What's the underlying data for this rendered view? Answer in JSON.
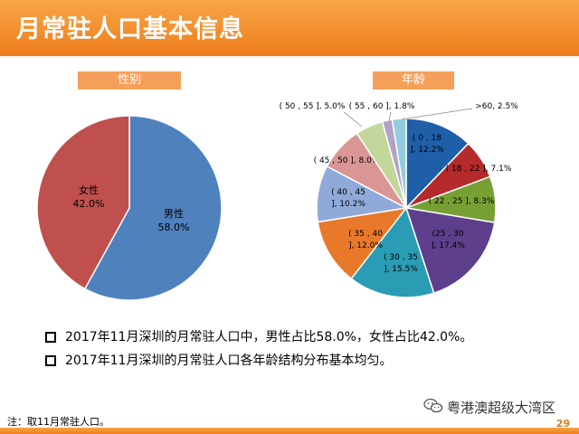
{
  "header": {
    "title": "月常驻人口基本信息"
  },
  "gender": {
    "label": "性别",
    "chart_data": {
      "type": "pie",
      "slices": [
        {
          "name": "男性",
          "value": 58.0,
          "label": "58.0%",
          "color": "#4f81bd"
        },
        {
          "name": "女性",
          "value": 42.0,
          "label": "42.0%",
          "color": "#c0504d"
        }
      ]
    }
  },
  "age": {
    "label": "年龄",
    "chart_data": {
      "type": "pie",
      "slices": [
        {
          "name": "( 0 , 18 ], 12.2%",
          "value": 12.2,
          "color": "#1f5fa8"
        },
        {
          "name": "( 18 , 22 ], 7.1%",
          "value": 7.1,
          "color": "#b52a2a"
        },
        {
          "name": "( 22 , 25 ], 8.3%",
          "value": 8.3,
          "color": "#77a034"
        },
        {
          "name": "( 25 , 30 ], 17.4%",
          "value": 17.4,
          "color": "#5d3f8c"
        },
        {
          "name": "( 30 , 35 ], 15.5%",
          "value": 15.5,
          "color": "#2a9cb4"
        },
        {
          "name": "( 35 , 40 ], 12.0%",
          "value": 12.0,
          "color": "#e8792b"
        },
        {
          "name": "( 40 , 45 ], 10.2%",
          "value": 10.2,
          "color": "#8fa9d8"
        },
        {
          "name": "( 45 , 50 ], 8.0%",
          "value": 8.0,
          "color": "#d99694"
        },
        {
          "name": "( 50 , 55 ], 5.0%",
          "value": 5.0,
          "color": "#c3d69b"
        },
        {
          "name": "( 55 , 60 ], 1.8%",
          "value": 1.8,
          "color": "#b3a2c7"
        },
        {
          "name": ">60, 2.5%",
          "value": 2.5,
          "color": "#93cddd"
        }
      ]
    }
  },
  "bullets": [
    "2017年11月深圳的月常驻人口中，男性占比58.0%，女性占比42.0%。",
    "2017年11月深圳的月常驻人口各年龄结构分布基本均匀。"
  ],
  "watermark": {
    "text": "粤港澳超级大湾区",
    "icon": "wechat-icon"
  },
  "footnote": "注：取11月常驻人口。",
  "page_number": "29"
}
